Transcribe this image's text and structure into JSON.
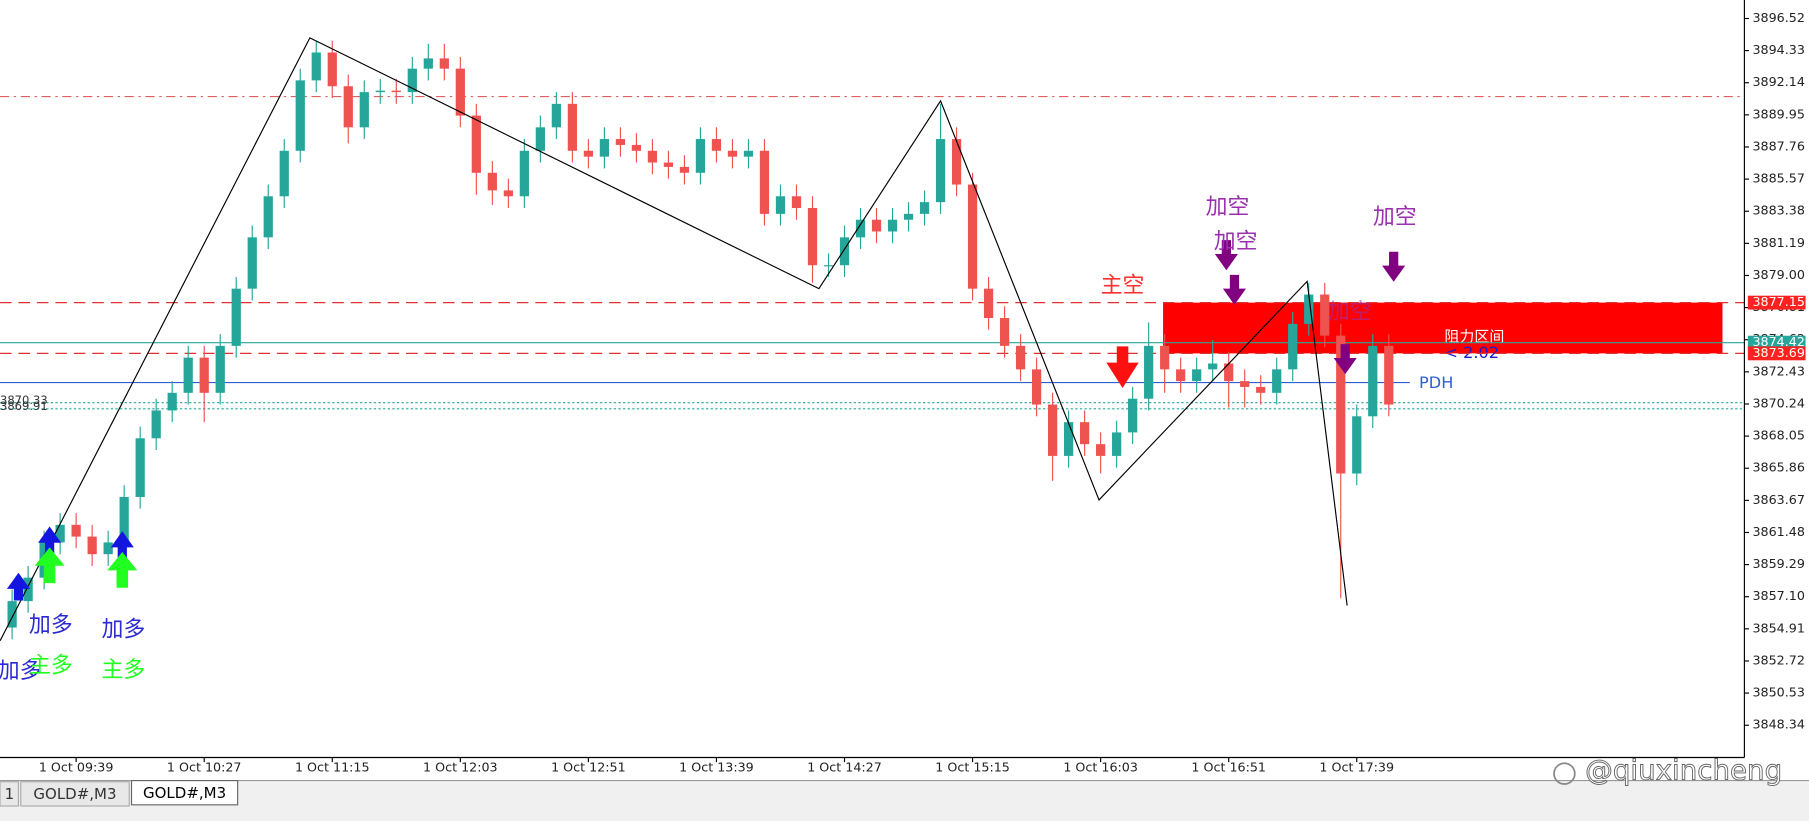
{
  "chart_data": {
    "type": "candlestick",
    "up_color": "#26a69a",
    "down_color": "#ef5350",
    "open": [
      3855.0,
      3856.8,
      3858.4,
      3860.8,
      3862.0,
      3861.2,
      3860.0,
      3860.8,
      3863.9,
      3867.9,
      3869.8,
      3871.0,
      3873.4,
      3871.0,
      3874.2,
      3878.1,
      3881.6,
      3884.4,
      3887.5,
      3892.3,
      3894.2,
      3891.9,
      3889.1,
      3891.5,
      3891.6,
      3891.5,
      3893.1,
      3893.8,
      3893.1,
      3889.9,
      3886.0,
      3884.8,
      3884.4,
      3887.5,
      3889.1,
      3890.7,
      3887.5,
      3887.1,
      3888.3,
      3887.9,
      3887.5,
      3886.7,
      3886.4,
      3886.0,
      3888.3,
      3887.5,
      3887.1,
      3887.5,
      3883.2,
      3884.4,
      3883.6,
      3879.7,
      3879.7,
      3881.6,
      3882.8,
      3882.0,
      3882.8,
      3883.2,
      3884.0,
      3888.3,
      3885.2,
      3878.1,
      3876.1,
      3874.2,
      3872.6,
      3870.2,
      3866.7,
      3869.0,
      3867.5,
      3866.7,
      3868.3,
      3870.6,
      3874.2,
      3872.6,
      3871.8,
      3872.6,
      3873.0,
      3871.8,
      3871.4,
      3871.0,
      3872.6,
      3875.7,
      3877.7,
      3874.9,
      3865.5,
      3869.4,
      3874.2
    ],
    "high": [
      3857.6,
      3859.2,
      3861.6,
      3862.8,
      3862.8,
      3862.0,
      3861.6,
      3864.7,
      3868.7,
      3870.6,
      3871.8,
      3874.2,
      3874.2,
      3875.0,
      3878.9,
      3882.4,
      3885.2,
      3888.3,
      3893.1,
      3895.0,
      3895.0,
      3892.7,
      3892.3,
      3892.4,
      3892.4,
      3893.9,
      3894.8,
      3894.8,
      3893.9,
      3890.7,
      3886.8,
      3885.6,
      3888.3,
      3889.9,
      3891.5,
      3891.5,
      3888.3,
      3889.1,
      3889.1,
      3888.7,
      3888.3,
      3887.5,
      3887.2,
      3889.1,
      3889.1,
      3888.3,
      3888.3,
      3888.3,
      3885.2,
      3885.2,
      3884.4,
      3880.5,
      3882.4,
      3883.6,
      3883.6,
      3883.6,
      3884.0,
      3884.8,
      3890.7,
      3889.1,
      3886.0,
      3878.9,
      3876.9,
      3875.0,
      3873.4,
      3871.0,
      3869.8,
      3869.8,
      3868.3,
      3869.1,
      3871.4,
      3875.8,
      3875.0,
      3873.4,
      3873.4,
      3874.6,
      3873.8,
      3872.6,
      3872.2,
      3873.4,
      3876.5,
      3878.5,
      3878.5,
      3875.7,
      3870.2,
      3875.0,
      3875.0
    ],
    "low": [
      3854.2,
      3856.0,
      3857.6,
      3860.0,
      3860.4,
      3859.2,
      3859.2,
      3860.0,
      3863.1,
      3867.1,
      3869.0,
      3870.2,
      3869.0,
      3870.2,
      3873.4,
      3877.3,
      3880.8,
      3883.6,
      3886.7,
      3891.5,
      3891.1,
      3888.0,
      3888.3,
      3890.7,
      3890.7,
      3890.7,
      3892.3,
      3892.3,
      3889.1,
      3884.5,
      3883.8,
      3883.6,
      3883.6,
      3886.7,
      3888.3,
      3886.7,
      3886.3,
      3886.3,
      3887.1,
      3886.7,
      3885.9,
      3885.6,
      3885.2,
      3885.2,
      3886.7,
      3886.3,
      3886.3,
      3882.4,
      3882.4,
      3882.8,
      3878.5,
      3878.9,
      3878.9,
      3880.8,
      3881.2,
      3881.2,
      3882.0,
      3882.4,
      3883.2,
      3884.4,
      3877.3,
      3875.3,
      3873.4,
      3871.8,
      3869.4,
      3865.0,
      3865.9,
      3866.7,
      3865.5,
      3865.9,
      3867.5,
      3869.8,
      3871.0,
      3871.0,
      3871.0,
      3871.8,
      3870.0,
      3870.0,
      3870.2,
      3870.2,
      3871.8,
      3874.9,
      3874.1,
      3857.0,
      3864.7,
      3868.6,
      3869.4
    ],
    "close": [
      3856.8,
      3858.4,
      3860.8,
      3862.0,
      3861.2,
      3860.0,
      3860.8,
      3863.9,
      3867.9,
      3869.8,
      3871.0,
      3873.4,
      3871.0,
      3874.2,
      3878.1,
      3881.6,
      3884.4,
      3887.5,
      3892.3,
      3894.2,
      3891.9,
      3889.1,
      3891.5,
      3891.6,
      3891.5,
      3893.1,
      3893.8,
      3893.1,
      3889.9,
      3886.0,
      3884.8,
      3884.4,
      3887.5,
      3889.1,
      3890.7,
      3887.5,
      3887.1,
      3888.3,
      3887.9,
      3887.5,
      3886.7,
      3886.4,
      3886.0,
      3888.3,
      3887.5,
      3887.1,
      3887.5,
      3883.2,
      3884.4,
      3883.6,
      3879.7,
      3879.7,
      3881.6,
      3882.8,
      3882.0,
      3882.8,
      3883.2,
      3884.0,
      3888.3,
      3885.2,
      3878.1,
      3876.1,
      3874.2,
      3872.6,
      3870.2,
      3866.7,
      3869.0,
      3867.5,
      3866.7,
      3868.3,
      3870.6,
      3874.2,
      3872.6,
      3871.8,
      3872.6,
      3873.0,
      3871.8,
      3871.4,
      3871.0,
      3872.6,
      3875.7,
      3877.7,
      3874.9,
      3865.5,
      3869.4,
      3874.2,
      3870.2
    ],
    "ylim": [
      3846.14,
      3897.78
    ],
    "yticks": [
      3896.52,
      3894.33,
      3892.14,
      3889.95,
      3887.76,
      3885.57,
      3883.38,
      3881.19,
      {
        "value": 3879,
        "label": "3879.00"
      },
      3876.81,
      3874.62,
      3872.43,
      3870.24,
      3868.05,
      3865.86,
      3863.67,
      3861.48,
      3859.29,
      {
        "value": 3857.1,
        "label": "3857.10"
      },
      3854.91,
      3852.72,
      3850.53,
      3848.34
    ],
    "xtick_labels": [
      "1 Oct 09:39",
      "1 Oct 10:27",
      "1 Oct 11:15",
      "1 Oct 12:03",
      "1 Oct 12:51",
      "1 Oct 13:39",
      "1 Oct 14:27",
      "1 Oct 15:15",
      "1 Oct 16:03",
      "1 Oct 16:51",
      "1 Oct 17:39"
    ],
    "zigzag": {
      "x": [
        -0.75,
        18.6,
        50.4,
        58,
        67.9,
        80.9,
        83.4
      ],
      "y": [
        3854.1,
        3895.2,
        3878.1,
        3890.9,
        3863.7,
        3878.6,
        3856.5
      ],
      "color": "#000000"
    },
    "levels": [
      {
        "value": 3891.2,
        "color": "#e06060",
        "dash": "dashdot"
      },
      {
        "value": 3877.15,
        "color": "#e03030",
        "dash": "dashed"
      },
      {
        "value": 3873.69,
        "color": "#e03030",
        "dash": "dashed"
      },
      {
        "value": 3874.42,
        "color": "#26a69a",
        "dash": "solid"
      },
      {
        "value": 3870.33,
        "color": "#26a69a",
        "dash": "dotted"
      },
      {
        "value": 3869.91,
        "color": "#26a69a",
        "dash": "dotted"
      }
    ],
    "price_tags": [
      {
        "value": 3877.15,
        "color": "#ff2020"
      },
      {
        "value": 3874.42,
        "color": "#26a69a"
      },
      {
        "value": 3873.69,
        "color": "#ff2020"
      }
    ],
    "left_labels": [
      3870.33,
      3869.91
    ],
    "zone": {
      "low": 3873.69,
      "high": 3877.15,
      "start": 71.9,
      "color": "#ff0000",
      "label": "阻力区间",
      "sub_label": "< 2.02"
    },
    "pdh": {
      "value": 3871.7,
      "color": "#3060d0",
      "label": "PDH"
    },
    "annotations": [
      "加多",
      "加多",
      "主多",
      "加多",
      "主多",
      "主空",
      "加空",
      "加空",
      "加空",
      "加空"
    ]
  },
  "ui": {
    "tabs": [
      "1",
      "GOLD#,M3",
      "GOLD#,M3"
    ],
    "watermark": "@qiuxincheng"
  }
}
